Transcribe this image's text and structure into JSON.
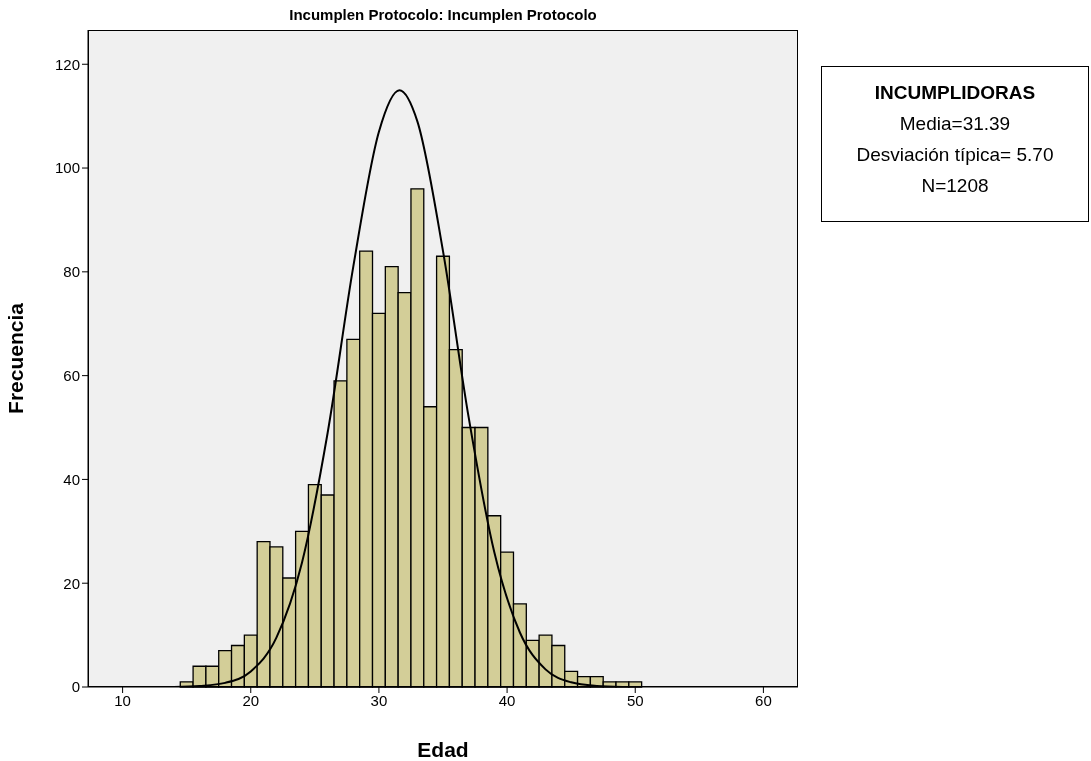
{
  "chart_data": {
    "type": "histogram",
    "title": "Incumplen Protocolo: Incumplen Protocolo",
    "xlabel": "Edad",
    "ylabel": "Frecuencia",
    "bins": [
      14.5,
      15.5,
      16.5,
      17.5,
      18.5,
      19.5,
      20.5,
      21.5,
      22.5,
      23.5,
      24.5,
      25.5,
      26.5,
      27.5,
      28.5,
      29.5,
      30.5,
      31.5,
      32.5,
      33.5,
      34.5,
      35.5,
      36.5,
      37.5,
      38.5,
      39.5,
      40.5,
      41.5,
      42.5,
      43.5,
      44.5,
      45.5,
      46.5,
      47.5,
      48.5,
      49.5,
      50.5
    ],
    "values": [
      1,
      4,
      4,
      7,
      8,
      10,
      28,
      27,
      21,
      30,
      39,
      37,
      59,
      67,
      84,
      72,
      81,
      76,
      96,
      54,
      83,
      65,
      50,
      50,
      33,
      26,
      16,
      9,
      10,
      8,
      3,
      2,
      2,
      1,
      1,
      1
    ],
    "color": "#d3ce98",
    "series": [
      {
        "type": "line",
        "color": "#000000",
        "x": [
          14,
          16,
          18,
          20,
          22,
          24,
          26,
          28,
          30,
          31.6,
          33,
          35,
          37,
          39,
          41,
          43,
          45,
          47,
          49
        ],
        "values": [
          0,
          0.2,
          0.8,
          3,
          9.5,
          24,
          49,
          81,
          107,
          115,
          109,
          84,
          52,
          26,
          10.5,
          3.4,
          0.9,
          0.2,
          0
        ]
      }
    ],
    "xlim": [
      7.3,
      62.7
    ],
    "xticks": [
      10,
      20,
      30,
      40,
      50,
      60
    ],
    "ylim": [
      0,
      126.6
    ],
    "yticks": [
      0,
      20,
      40,
      60,
      80,
      100,
      120
    ],
    "grid": false,
    "marker": "none",
    "line_style": "solid",
    "annotations": [
      "INCUMPLIDORAS",
      "Media=31.39",
      "Desviación típica= 5.70",
      "N=1208"
    ]
  }
}
